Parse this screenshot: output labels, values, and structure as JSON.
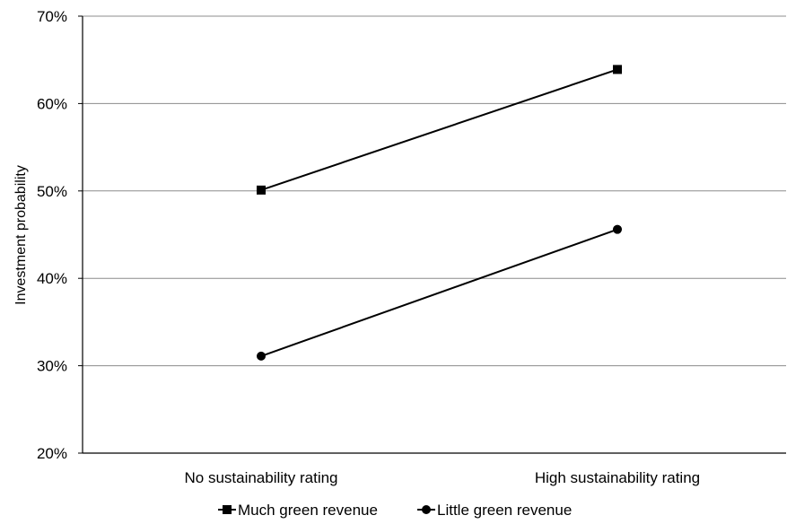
{
  "chart_data": {
    "type": "line",
    "title": "",
    "xlabel": "",
    "ylabel": "Investment probability",
    "categories": [
      "No sustainability rating",
      "High sustainability rating"
    ],
    "ylim": [
      0.2,
      0.7
    ],
    "yticks": [
      0.2,
      0.3,
      0.4,
      0.5,
      0.6,
      0.7
    ],
    "ytick_labels": [
      "20%",
      "30%",
      "40%",
      "50%",
      "60%",
      "70%"
    ],
    "grid": true,
    "legend_position": "bottom",
    "series": [
      {
        "name": "Much green revenue",
        "marker": "square",
        "color": "#000000",
        "values": [
          0.501,
          0.639
        ]
      },
      {
        "name": "Little green revenue",
        "marker": "circle",
        "color": "#000000",
        "values": [
          0.311,
          0.456
        ]
      }
    ]
  }
}
